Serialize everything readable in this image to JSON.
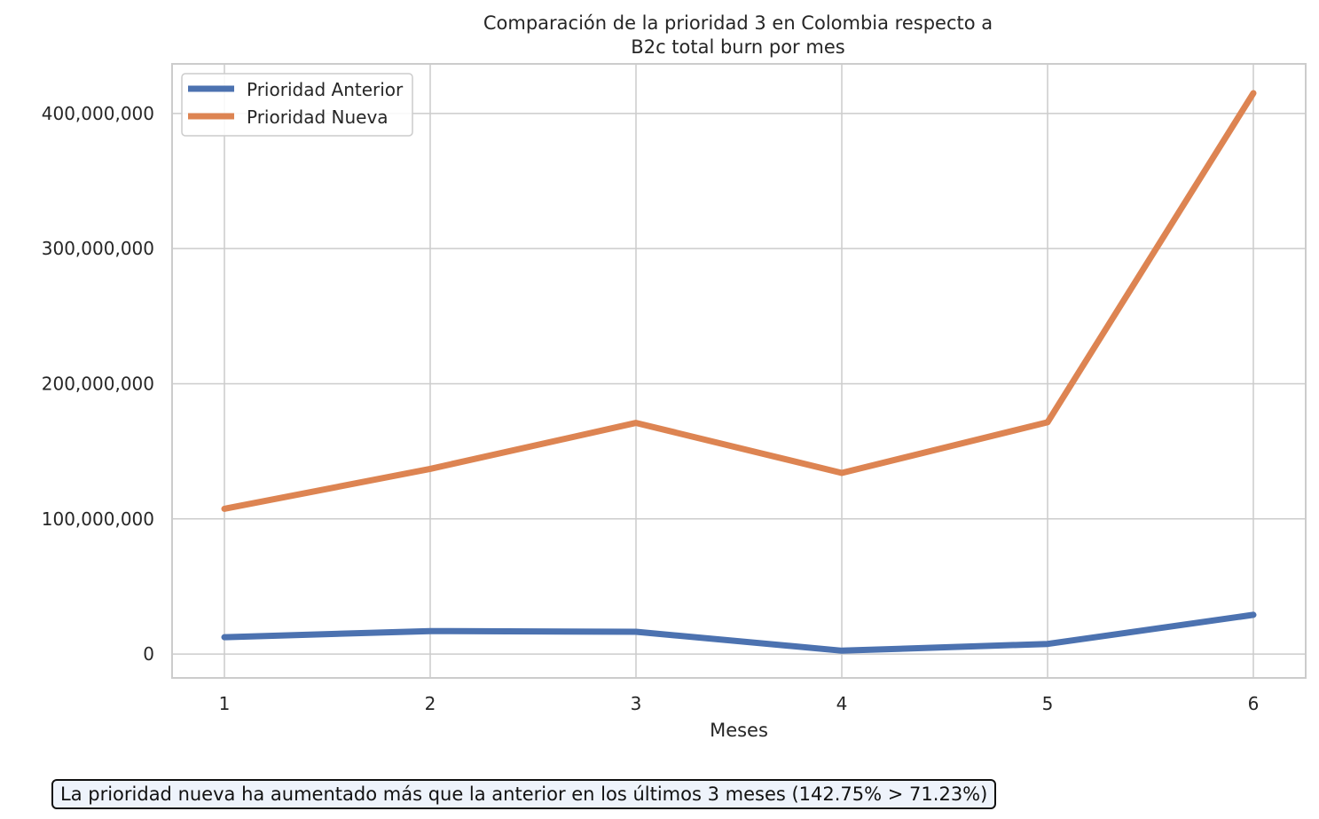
{
  "chart_data": {
    "type": "line",
    "title_lines": [
      "Comparación de la prioridad 3 en Colombia respecto a",
      "B2c total burn por mes"
    ],
    "xlabel": "Meses",
    "ylabel": "",
    "x": [
      1,
      2,
      3,
      4,
      5,
      6
    ],
    "xticks": [
      "1",
      "2",
      "3",
      "4",
      "5",
      "6"
    ],
    "xlim": [
      0.75,
      6.25
    ],
    "ylim": [
      -17000000,
      436000000
    ],
    "yticks": [
      0,
      100000000,
      200000000,
      300000000,
      400000000
    ],
    "ytick_labels": [
      "0",
      "100,000,000",
      "200,000,000",
      "300,000,000",
      "400,000,000"
    ],
    "grid": true,
    "legend_position": "top-left",
    "series": [
      {
        "name": "Prioridad Anterior",
        "color": "#4c72b0",
        "values": [
          12500000,
          17000000,
          16500000,
          2500000,
          7500000,
          29000000
        ]
      },
      {
        "name": "Prioridad Nueva",
        "color": "#dd8452",
        "values": [
          107500000,
          137000000,
          171000000,
          134000000,
          171500000,
          415000000
        ]
      }
    ]
  },
  "annotation": {
    "text": "La prioridad nueva ha aumentado más que la anterior en los últimos 3 meses (142.75% > 71.23%)"
  }
}
